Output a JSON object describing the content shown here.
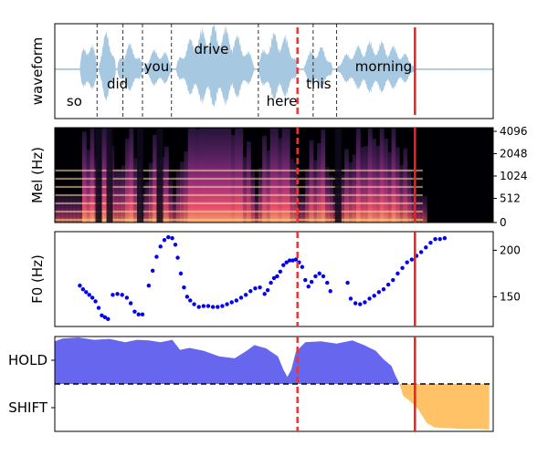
{
  "chart_data": [
    {
      "type": "area",
      "ylabel": "waveform",
      "words": [
        "so",
        "did",
        "you",
        "drive",
        "here",
        "this",
        "morning"
      ],
      "word_boundaries_s": [
        0.54,
        1.12,
        1.49,
        2.6,
        3.6
      ],
      "current_time_s": 3.1,
      "end_time_s": 4.6,
      "x_range_s": [
        0,
        5.6
      ],
      "colors": {
        "waveform": "#a6c8e0",
        "boundary": "#333333",
        "current_marker": "#ee3333",
        "end_marker": "#ee2222"
      }
    },
    {
      "type": "heatmap",
      "ylabel": "Mel (Hz)",
      "yticks": [
        "0",
        "512",
        "1024",
        "2048",
        "4096"
      ],
      "x_range_s": [
        0,
        5.6
      ]
    },
    {
      "type": "scatter",
      "ylabel": "F0 (Hz)",
      "yticks": [
        150,
        200
      ],
      "ylim": [
        118,
        220
      ],
      "x_range_s": [
        0,
        5.6
      ],
      "point_color": "#0000ee",
      "points": [
        [
          0.32,
          162
        ],
        [
          0.36,
          158
        ],
        [
          0.4,
          155
        ],
        [
          0.44,
          152
        ],
        [
          0.48,
          149
        ],
        [
          0.52,
          145
        ],
        [
          0.56,
          138
        ],
        [
          0.6,
          130
        ],
        [
          0.64,
          128
        ],
        [
          0.68,
          126
        ],
        [
          0.74,
          152
        ],
        [
          0.8,
          153
        ],
        [
          0.86,
          152
        ],
        [
          0.92,
          149
        ],
        [
          0.97,
          143
        ],
        [
          1.02,
          134
        ],
        [
          1.07,
          131
        ],
        [
          1.12,
          131
        ],
        [
          1.2,
          162
        ],
        [
          1.25,
          178
        ],
        [
          1.3,
          193
        ],
        [
          1.35,
          204
        ],
        [
          1.4,
          211
        ],
        [
          1.45,
          214
        ],
        [
          1.5,
          213
        ],
        [
          1.54,
          206
        ],
        [
          1.57,
          192
        ],
        [
          1.61,
          175
        ],
        [
          1.65,
          160
        ],
        [
          1.69,
          150
        ],
        [
          1.73,
          146
        ],
        [
          1.78,
          142
        ],
        [
          1.84,
          139
        ],
        [
          1.9,
          140
        ],
        [
          1.96,
          140
        ],
        [
          2.02,
          139
        ],
        [
          2.08,
          139
        ],
        [
          2.14,
          140
        ],
        [
          2.2,
          142
        ],
        [
          2.26,
          144
        ],
        [
          2.32,
          146
        ],
        [
          2.38,
          149
        ],
        [
          2.44,
          152
        ],
        [
          2.5,
          156
        ],
        [
          2.56,
          159
        ],
        [
          2.62,
          160
        ],
        [
          2.68,
          153
        ],
        [
          2.72,
          157
        ],
        [
          2.76,
          165
        ],
        [
          2.8,
          170
        ],
        [
          2.84,
          172
        ],
        [
          2.88,
          177
        ],
        [
          2.92,
          184
        ],
        [
          2.96,
          187
        ],
        [
          3.0,
          189
        ],
        [
          3.04,
          189
        ],
        [
          3.08,
          190
        ],
        [
          3.12,
          187
        ],
        [
          3.16,
          182
        ],
        [
          3.2,
          168
        ],
        [
          3.24,
          161
        ],
        [
          3.28,
          166
        ],
        [
          3.33,
          172
        ],
        [
          3.38,
          175
        ],
        [
          3.43,
          172
        ],
        [
          3.48,
          165
        ],
        [
          3.52,
          156
        ],
        [
          3.74,
          165
        ],
        [
          3.78,
          148
        ],
        [
          3.84,
          143
        ],
        [
          3.9,
          142
        ],
        [
          3.96,
          144
        ],
        [
          4.02,
          148
        ],
        [
          4.08,
          151
        ],
        [
          4.14,
          155
        ],
        [
          4.2,
          158
        ],
        [
          4.26,
          163
        ],
        [
          4.32,
          168
        ],
        [
          4.38,
          175
        ],
        [
          4.44,
          181
        ],
        [
          4.5,
          187
        ],
        [
          4.56,
          190
        ],
        [
          4.62,
          194
        ],
        [
          4.68,
          198
        ],
        [
          4.74,
          203
        ],
        [
          4.8,
          208
        ],
        [
          4.86,
          212
        ],
        [
          4.92,
          212
        ],
        [
          4.98,
          213
        ]
      ],
      "current_time_s": 3.1,
      "end_time_s": 4.6
    },
    {
      "type": "area",
      "yticks": [
        "HOLD",
        "SHIFT"
      ],
      "ylim": [
        -1,
        1
      ],
      "x_range_s": [
        0,
        5.6
      ],
      "hold_color": "#6666ee",
      "shift_color": "#ffc266",
      "series": [
        {
          "values": [
            [
              0.0,
              0.9
            ],
            [
              0.1,
              0.96
            ],
            [
              0.3,
              0.98
            ],
            [
              0.5,
              0.93
            ],
            [
              0.7,
              0.95
            ],
            [
              0.9,
              0.88
            ],
            [
              1.05,
              0.93
            ],
            [
              1.2,
              0.92
            ],
            [
              1.35,
              0.88
            ],
            [
              1.5,
              0.93
            ],
            [
              1.6,
              0.72
            ],
            [
              1.72,
              0.76
            ],
            [
              1.9,
              0.7
            ],
            [
              2.1,
              0.58
            ],
            [
              2.3,
              0.54
            ],
            [
              2.45,
              0.7
            ],
            [
              2.55,
              0.82
            ],
            [
              2.7,
              0.75
            ],
            [
              2.85,
              0.58
            ],
            [
              2.92,
              0.3
            ],
            [
              2.97,
              0.15
            ],
            [
              3.02,
              0.3
            ],
            [
              3.08,
              0.68
            ],
            [
              3.2,
              0.88
            ],
            [
              3.4,
              0.9
            ],
            [
              3.6,
              0.85
            ],
            [
              3.8,
              0.92
            ],
            [
              3.95,
              0.82
            ],
            [
              4.1,
              0.7
            ],
            [
              4.2,
              0.52
            ],
            [
              4.3,
              0.38
            ],
            [
              4.35,
              0.18
            ],
            [
              4.4,
              0.02
            ],
            [
              4.45,
              -0.25
            ],
            [
              4.55,
              -0.38
            ],
            [
              4.65,
              -0.55
            ],
            [
              4.75,
              -0.82
            ],
            [
              4.85,
              -0.92
            ],
            [
              5.0,
              -0.93
            ],
            [
              5.2,
              -0.95
            ],
            [
              5.4,
              -0.95
            ],
            [
              5.55,
              -0.96
            ]
          ]
        }
      ],
      "threshold": 0.0,
      "current_time_s": 3.1,
      "end_time_s": 4.6
    }
  ]
}
